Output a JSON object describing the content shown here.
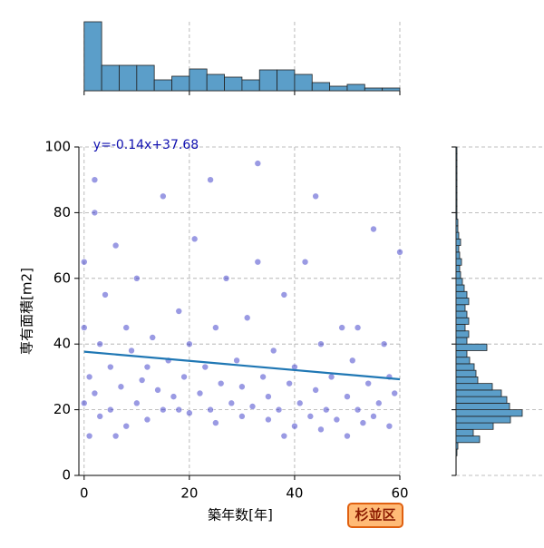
{
  "chart_data": {
    "type": "scatter",
    "x_label": "築年数[年]",
    "y_label": "専有面積[m2]",
    "annotation": "杉並区",
    "regression": {
      "slope": -0.14,
      "intercept": 37.68,
      "label": "y=-0.14x+37.68",
      "color": "#1f77b4"
    },
    "color": "#2020c0",
    "xlim": [
      -1,
      60
    ],
    "ylim": [
      0,
      100
    ],
    "xticks": [
      0,
      20,
      40,
      60
    ],
    "yticks": [
      0,
      20,
      40,
      60,
      80,
      100
    ],
    "grid": true,
    "x": [
      0,
      0,
      0,
      1,
      1,
      2,
      2,
      3,
      3,
      4,
      5,
      5,
      6,
      7,
      8,
      8,
      9,
      10,
      10,
      11,
      12,
      13,
      14,
      15,
      15,
      16,
      17,
      18,
      19,
      20,
      20,
      21,
      22,
      23,
      24,
      25,
      25,
      26,
      27,
      28,
      29,
      30,
      30,
      31,
      32,
      33,
      34,
      35,
      35,
      36,
      37,
      38,
      39,
      40,
      40,
      41,
      42,
      43,
      44,
      45,
      45,
      46,
      47,
      48,
      49,
      50,
      50,
      51,
      52,
      53,
      54,
      55,
      55,
      56,
      57,
      58,
      59,
      60,
      2,
      6,
      12,
      18,
      24,
      33,
      38,
      44,
      52,
      58
    ],
    "values": [
      45,
      22,
      65,
      12,
      30,
      90,
      25,
      40,
      18,
      55,
      33,
      20,
      70,
      27,
      15,
      45,
      38,
      22,
      60,
      29,
      17,
      42,
      26,
      85,
      20,
      35,
      24,
      50,
      30,
      19,
      40,
      72,
      25,
      33,
      20,
      45,
      16,
      28,
      60,
      22,
      35,
      18,
      27,
      48,
      21,
      95,
      30,
      24,
      17,
      38,
      20,
      55,
      28,
      15,
      33,
      22,
      65,
      18,
      26,
      40,
      14,
      20,
      30,
      17,
      45,
      24,
      12,
      35,
      20,
      16,
      28,
      75,
      18,
      22,
      40,
      15,
      25,
      68,
      80,
      12,
      33,
      20,
      90,
      65,
      12,
      85,
      45,
      30
    ],
    "hist_color": "#5b9ec9",
    "x_histogram": {
      "bins": [
        0,
        3.33,
        6.67,
        10,
        13.33,
        16.67,
        20,
        23.33,
        26.67,
        30,
        33.33,
        36.67,
        40,
        43.33,
        46.67,
        50,
        53.33,
        56.67,
        60
      ],
      "counts": [
        76,
        28,
        28,
        28,
        12,
        16,
        24,
        18,
        15,
        12,
        23,
        23,
        18,
        9,
        5,
        7,
        3,
        3
      ]
    },
    "y_histogram": {
      "bins": [
        6,
        8,
        10,
        12,
        14,
        16,
        18,
        20,
        22,
        24,
        26,
        28,
        30,
        32,
        34,
        36,
        38,
        40,
        42,
        44,
        46,
        48,
        50,
        52,
        54,
        56,
        58,
        60,
        62,
        64,
        66,
        68,
        70,
        72,
        74,
        76,
        78,
        80,
        82,
        84,
        86,
        88,
        90,
        92,
        94,
        96,
        98,
        100
      ],
      "counts": [
        1,
        2,
        26,
        19,
        41,
        60,
        73,
        59,
        56,
        50,
        40,
        24,
        22,
        20,
        15,
        12,
        34,
        12,
        14,
        10,
        14,
        12,
        10,
        14,
        12,
        9,
        7,
        5,
        4,
        6,
        4,
        3,
        5,
        3,
        2,
        2,
        1,
        1,
        1,
        1,
        1,
        1,
        1,
        1,
        1,
        1,
        1
      ]
    }
  }
}
